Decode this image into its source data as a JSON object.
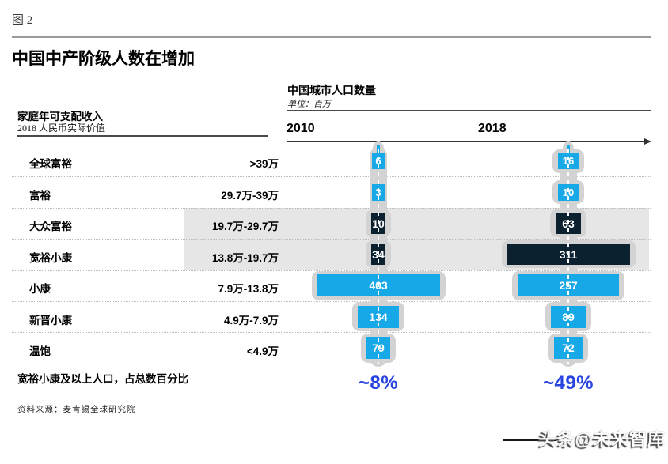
{
  "figure_label": "图 2",
  "title": "中国中产阶级人数在增加",
  "income_header": {
    "line1": "家庭年可支配收入",
    "line2": "2018 人民币实际价值"
  },
  "source": "资料来源：麦肯锡全球研究院",
  "watermark": "头条@未来智库",
  "colors": {
    "cyan": "#17a8e8",
    "dark_navy": "#0b2130",
    "accent_blue": "#2944e0",
    "band_gray": "#e6e6e6",
    "silhouette_gray": "#d3d3d3",
    "axis": "#333333"
  },
  "chart_data": {
    "type": "bar",
    "subtype": "horizontal-population-pyramid-comparison",
    "header": "中国城市人口数量",
    "unit_label": "单位：百万",
    "unit": "百万 (millions)",
    "summary_label": "宽裕小康及以上人口，占总数百分比",
    "legend_position": "none",
    "grid": "dotted row separators",
    "highlight_band_rows": [
      2,
      3
    ],
    "categories": [
      {
        "name": "全球富裕",
        "range": ">39万",
        "style": "tag",
        "highlight": false
      },
      {
        "name": "富裕",
        "range": "29.7万-39万",
        "style": "tag",
        "highlight": false
      },
      {
        "name": "大众富裕",
        "range": "19.7万-29.7万",
        "style": "dark",
        "highlight": true
      },
      {
        "name": "宽裕小康",
        "range": "13.8万-19.7万",
        "style": "dark",
        "highlight": true
      },
      {
        "name": "小康",
        "range": "7.9万-13.8万",
        "style": "cyan",
        "highlight": false
      },
      {
        "name": "新晋小康",
        "range": "4.9万-7.9万",
        "style": "cyan",
        "highlight": false
      },
      {
        "name": "温饱",
        "range": "<4.9万",
        "style": "cyan",
        "highlight": false
      }
    ],
    "series": [
      {
        "name": "2010",
        "values": [
          6,
          3,
          10,
          34,
          403,
          134,
          79
        ],
        "share_above_comfortable": "~8%"
      },
      {
        "name": "2018",
        "values": [
          16,
          10,
          63,
          311,
          257,
          89,
          72
        ],
        "share_above_comfortable": "~49%"
      }
    ]
  }
}
